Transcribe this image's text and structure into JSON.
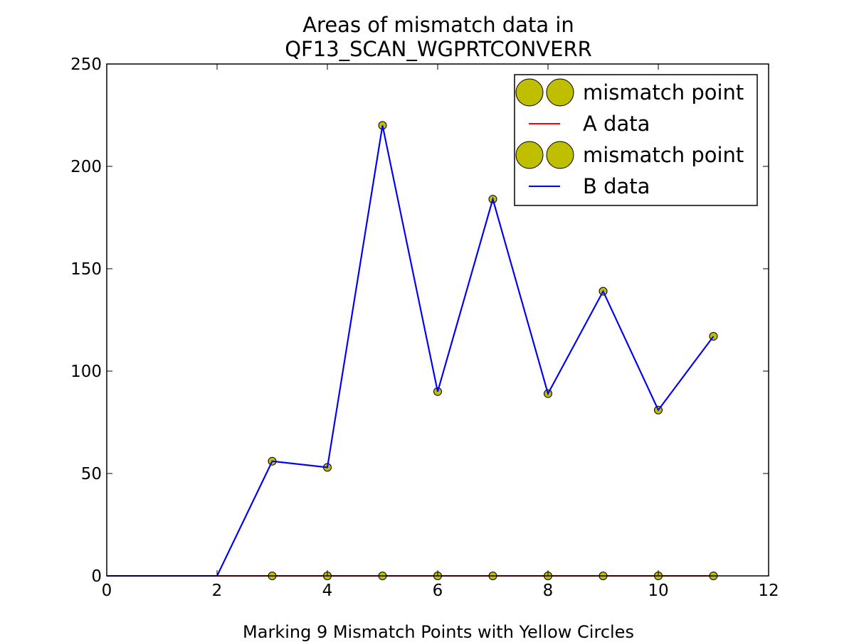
{
  "chart_data": {
    "type": "line",
    "title_lines": [
      "Areas of mismatch data in",
      "QF13_SCAN_WGPRTCONVERR"
    ],
    "xlabel": "Marking 9 Mismatch Points with Yellow Circles",
    "ylabel": "",
    "xlim": [
      0,
      12
    ],
    "ylim": [
      0,
      250
    ],
    "x_ticks": [
      0,
      2,
      4,
      6,
      8,
      10,
      12
    ],
    "y_ticks": [
      0,
      50,
      100,
      150,
      200,
      250
    ],
    "grid": false,
    "legend_position": "top-right",
    "series": [
      {
        "name": "mismatch point",
        "kind": "marker",
        "color": "#bfbf00",
        "x": [
          3,
          4,
          5,
          6,
          7,
          8,
          9,
          10,
          11
        ],
        "y": [
          0,
          0,
          0,
          0,
          0,
          0,
          0,
          0,
          0
        ]
      },
      {
        "name": "A data",
        "kind": "line",
        "color": "#ff0000",
        "x": [
          0,
          1,
          2,
          3,
          4,
          5,
          6,
          7,
          8,
          9,
          10,
          11
        ],
        "y": [
          0,
          0,
          0,
          0,
          0,
          0,
          0,
          0,
          0,
          0,
          0,
          0
        ]
      },
      {
        "name": "mismatch point",
        "kind": "marker",
        "color": "#bfbf00",
        "x": [
          3,
          4,
          5,
          6,
          7,
          8,
          9,
          10,
          11
        ],
        "y": [
          56,
          53,
          220,
          90,
          184,
          89,
          139,
          81,
          117
        ]
      },
      {
        "name": "B data",
        "kind": "line",
        "color": "#0000ff",
        "x": [
          0,
          1,
          2,
          3,
          4,
          5,
          6,
          7,
          8,
          9,
          10,
          11
        ],
        "y": [
          0,
          0,
          0,
          56,
          53,
          220,
          90,
          184,
          89,
          139,
          81,
          117
        ]
      }
    ]
  }
}
